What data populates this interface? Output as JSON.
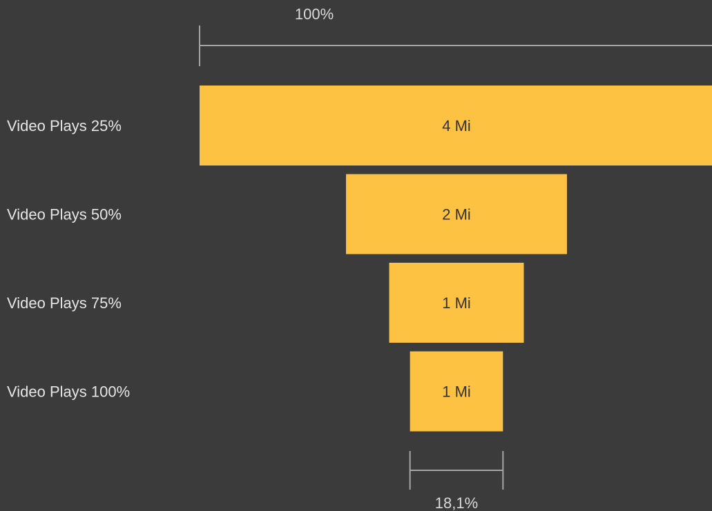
{
  "chart_data": {
    "type": "bar",
    "orientation": "funnel",
    "categories": [
      "Video Plays 25%",
      "Video Plays 50%",
      "Video Plays 75%",
      "Video Plays 100%"
    ],
    "value_labels": [
      "4 Mi",
      "2 Mi",
      "1 Mi",
      "1 Mi"
    ],
    "relative_values": [
      100,
      43.0,
      26.2,
      18.1
    ],
    "top_reference_label": "100%",
    "bottom_reference_label": "18,1%",
    "bar_color": "#fdc241",
    "background_color": "#3b3b3b"
  }
}
